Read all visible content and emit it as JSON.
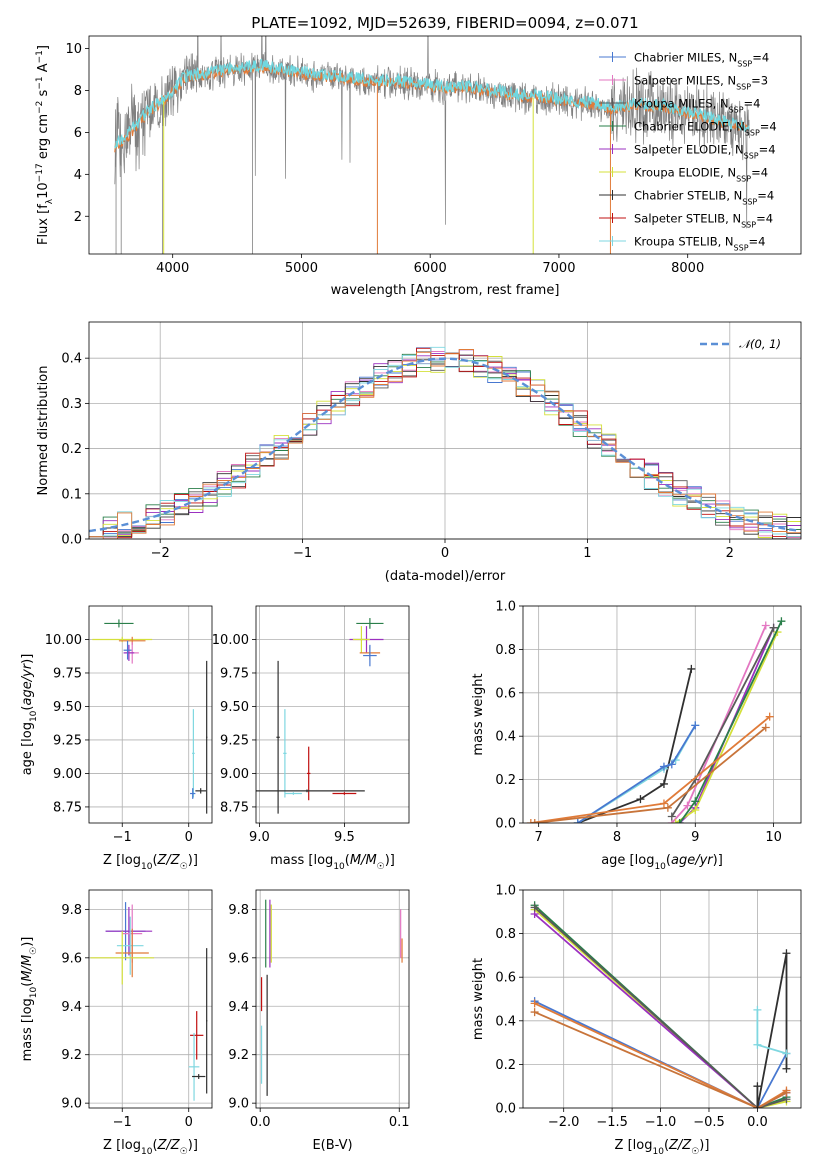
{
  "chart_data": [
    {
      "type": "line",
      "title": "PLATE=1092, MJD=52639, FIBERID=0094, z=0.071",
      "xlabel": "wavelength [Angstrom, rest frame]",
      "ylabel": "Flux [f_λ 10^-17 erg cm^-2 s^-1 A^-1]",
      "xlim": [
        3350,
        8880
      ],
      "ylim": [
        0.2,
        10.6
      ],
      "xticks": [
        "4000",
        "5000",
        "6000",
        "7000",
        "8000"
      ],
      "yticks": [
        "2",
        "4",
        "6",
        "8",
        "10"
      ],
      "grid": false,
      "legend_position": "upper right",
      "series": [
        {
          "name": "Chabrier MILES, N_SSP=4",
          "color": "#4878d0"
        },
        {
          "name": "Salpeter MILES, N_SSP=3",
          "color": "#e377c2"
        },
        {
          "name": "Kroupa MILES, N_SSP=4",
          "color": "#5a5a5a"
        },
        {
          "name": "Chabrier ELODIE, N_SSP=4",
          "color": "#2a7f4a"
        },
        {
          "name": "Salpeter ELODIE, N_SSP=4",
          "color": "#9b30c0"
        },
        {
          "name": "Kroupa ELODIE, N_SSP=4",
          "color": "#d4e03b"
        },
        {
          "name": "Chabrier STELIB, N_SSP=4",
          "color": "#303030"
        },
        {
          "name": "Salpeter STELIB, N_SSP=4",
          "color": "#c01010"
        },
        {
          "name": "Kroupa STELIB, N_SSP=4",
          "color": "#7fd7e0"
        }
      ],
      "data_spectrum_color": "#808080",
      "model_color": "#e07b39",
      "model_color2": "#70d8e0",
      "continuum_knots": {
        "x": [
          3550,
          3650,
          3800,
          3950,
          4100,
          4300,
          4500,
          4700,
          4900,
          5100,
          5300,
          5500,
          5700,
          5900,
          6100,
          6300,
          6500,
          6700,
          6900,
          7100,
          7300,
          7400
        ],
        "y": [
          5.3,
          5.8,
          6.9,
          7.6,
          8.6,
          8.8,
          9.0,
          9.1,
          8.9,
          8.7,
          8.6,
          8.4,
          8.4,
          8.3,
          8.1,
          8.1,
          7.9,
          7.7,
          7.6,
          7.4,
          7.3,
          7.1
        ]
      },
      "continuum_knots_red": {
        "x": [
          7400,
          7600,
          7800,
          8000,
          8200,
          8400
        ],
        "y": [
          7.1,
          7.3,
          7.2,
          6.9,
          6.6,
          6.2
        ]
      }
    },
    {
      "type": "line",
      "xlabel": "(data-model)/error",
      "ylabel": "Normed distribution",
      "xlim": [
        -2.5,
        2.5
      ],
      "ylim": [
        0,
        0.48
      ],
      "xticks": [
        "−2",
        "−1",
        "0",
        "1",
        "2"
      ],
      "yticks": [
        "0.0",
        "0.1",
        "0.2",
        "0.3",
        "0.4"
      ],
      "grid": true,
      "legend_position": "upper right",
      "legend": [
        "𝒩(0, 1)"
      ],
      "gaussian_color": "#5b8fd6",
      "hist_colors": [
        "#4878d0",
        "#e377c2",
        "#5a5a5a",
        "#2a7f4a",
        "#9b30c0",
        "#d4e03b",
        "#303030",
        "#c01010",
        "#7fd7e0",
        "#e07b39"
      ]
    },
    {
      "type": "scatter",
      "xlabel": "Z [log10(Z/Z☉)]",
      "ylabel": "age  [log10(age/yr)]",
      "xlim": [
        -1.5,
        0.35
      ],
      "ylim": [
        8.63,
        10.25
      ],
      "xticks": [
        "−1",
        "0"
      ],
      "yticks": [
        "8.75",
        "9.00",
        "9.25",
        "9.50",
        "9.75",
        "10.00"
      ],
      "grid": true,
      "points": [
        {
          "x": -1.05,
          "y": 10.12,
          "xerr": 0.22,
          "yerr": 0.03,
          "color": "#2a7f4a"
        },
        {
          "x": -1.0,
          "y": 10.0,
          "xerr": 0.45,
          "yerr": 0.02,
          "color": "#d4e03b"
        },
        {
          "x": -0.85,
          "y": 9.99,
          "xerr": 0.2,
          "yerr": 0.03,
          "color": "#e07b39"
        },
        {
          "x": -0.85,
          "y": 9.9,
          "xerr": 0.1,
          "yerr": 0.08,
          "color": "#e377c2"
        },
        {
          "x": -0.9,
          "y": 9.9,
          "xerr": 0.08,
          "yerr": 0.06,
          "color": "#9b30c0"
        },
        {
          "x": -0.92,
          "y": 9.92,
          "xerr": 0.06,
          "yerr": 0.07,
          "color": "#4878d0"
        },
        {
          "x": 0.07,
          "y": 9.15,
          "xerr": 0.02,
          "yerr": 0.33,
          "color": "#7fd7e0"
        },
        {
          "x": 0.06,
          "y": 8.85,
          "xerr": 0.04,
          "yerr": 0.04,
          "color": "#4878d0"
        },
        {
          "x": 0.18,
          "y": 8.87,
          "xerr": 0.08,
          "yerr": 0.02,
          "color": "#303030"
        },
        {
          "x": 0.27,
          "y": 9.27,
          "xerr": 0.01,
          "yerr": 0.57,
          "color": "#303030"
        }
      ]
    },
    {
      "type": "scatter",
      "xlabel": "mass [log10(M/M☉)]",
      "ylabel": "",
      "xlim": [
        8.98,
        9.88
      ],
      "ylim": [
        8.63,
        10.25
      ],
      "xticks": [
        "9.0",
        "9.5"
      ],
      "yticks": [
        "8.75",
        "9.00",
        "9.25",
        "9.50",
        "9.75",
        "10.00"
      ],
      "grid": true,
      "points": [
        {
          "x": 9.65,
          "y": 10.12,
          "xerr": 0.08,
          "yerr": 0.04,
          "color": "#2a7f4a"
        },
        {
          "x": 9.63,
          "y": 10.0,
          "xerr": 0.1,
          "yerr": 0.1,
          "color": "#9b30c0"
        },
        {
          "x": 9.6,
          "y": 10.0,
          "xerr": 0.05,
          "yerr": 0.1,
          "color": "#d4e03b"
        },
        {
          "x": 9.65,
          "y": 9.9,
          "xerr": 0.06,
          "yerr": 0.05,
          "color": "#e07b39"
        },
        {
          "x": 9.65,
          "y": 9.88,
          "xerr": 0.04,
          "yerr": 0.08,
          "color": "#4878d0"
        },
        {
          "x": 9.11,
          "y": 9.27,
          "xerr": 0.01,
          "yerr": 0.57,
          "color": "#303030"
        },
        {
          "x": 9.15,
          "y": 9.15,
          "xerr": 0.01,
          "yerr": 0.33,
          "color": "#7fd7e0"
        },
        {
          "x": 9.29,
          "y": 9.0,
          "xerr": 0.01,
          "yerr": 0.2,
          "color": "#c01010"
        },
        {
          "x": 9.28,
          "y": 8.87,
          "xerr": 0.34,
          "yerr": 0.01,
          "color": "#303030"
        },
        {
          "x": 9.5,
          "y": 8.85,
          "xerr": 0.07,
          "yerr": 0.01,
          "color": "#c01010"
        },
        {
          "x": 9.2,
          "y": 8.85,
          "xerr": 0.05,
          "yerr": 0.01,
          "color": "#7fd7e0"
        }
      ]
    },
    {
      "type": "line",
      "xlabel": "age  [log10(age/yr)]",
      "ylabel": "mass weight",
      "xlim": [
        6.8,
        10.35
      ],
      "ylim": [
        0,
        1.0
      ],
      "xticks": [
        "7",
        "8",
        "9",
        "10"
      ],
      "yticks": [
        "0.0",
        "0.2",
        "0.4",
        "0.6",
        "0.8",
        "1.0"
      ],
      "grid": true,
      "series": [
        {
          "color": "#303030",
          "x": [
            7.5,
            8.3,
            8.6,
            8.95
          ],
          "y": [
            0.0,
            0.11,
            0.18,
            0.71
          ]
        },
        {
          "color": "#7fd7e0",
          "x": [
            7.5,
            8.6,
            8.75,
            9.0
          ],
          "y": [
            0.0,
            0.25,
            0.29,
            0.45
          ]
        },
        {
          "color": "#4878d0",
          "x": [
            7.5,
            8.6,
            8.7,
            9.0
          ],
          "y": [
            0.0,
            0.26,
            0.27,
            0.45
          ]
        },
        {
          "color": "#e377c2",
          "x": [
            8.7,
            8.9,
            9.9
          ],
          "y": [
            0.0,
            0.08,
            0.91
          ]
        },
        {
          "color": "#9b30c0",
          "x": [
            8.8,
            9.0,
            10.0
          ],
          "y": [
            0.0,
            0.07,
            0.9
          ]
        },
        {
          "color": "#d4e03b",
          "x": [
            8.75,
            9.0,
            10.05
          ],
          "y": [
            0.0,
            0.06,
            0.88
          ]
        },
        {
          "color": "#2a7f4a",
          "x": [
            8.8,
            9.0,
            10.1
          ],
          "y": [
            0.0,
            0.1,
            0.93
          ]
        },
        {
          "color": "#5a5a5a",
          "x": [
            8.7,
            9.0,
            10.0
          ],
          "y": [
            0.03,
            0.2,
            0.9
          ]
        },
        {
          "color": "#e07b39",
          "x": [
            6.9,
            8.6,
            9.95
          ],
          "y": [
            0.0,
            0.09,
            0.49
          ]
        },
        {
          "color": "#c8743a",
          "x": [
            6.95,
            8.65,
            9.9
          ],
          "y": [
            0.0,
            0.07,
            0.44
          ]
        }
      ]
    },
    {
      "type": "scatter",
      "xlabel": "Z [log10(Z/Z☉)]",
      "ylabel": "mass [log10(M/M☉)]",
      "xlim": [
        -1.5,
        0.35
      ],
      "ylim": [
        8.98,
        9.88
      ],
      "xticks": [
        "−1",
        "0"
      ],
      "yticks": [
        "9.0",
        "9.2",
        "9.4",
        "9.6",
        "9.8"
      ],
      "grid": true,
      "points": [
        {
          "x": -0.95,
          "y": 9.71,
          "xerr": 0.3,
          "yerr": 0.12,
          "color": "#4878d0"
        },
        {
          "x": -0.9,
          "y": 9.71,
          "xerr": 0.35,
          "yerr": 0.1,
          "color": "#9b30c0"
        },
        {
          "x": -0.85,
          "y": 9.7,
          "xerr": 0.15,
          "yerr": 0.12,
          "color": "#e377c2"
        },
        {
          "x": -0.88,
          "y": 9.65,
          "xerr": 0.2,
          "yerr": 0.12,
          "color": "#7fd7e0"
        },
        {
          "x": -0.85,
          "y": 9.62,
          "xerr": 0.25,
          "yerr": 0.1,
          "color": "#e07b39"
        },
        {
          "x": -1.0,
          "y": 9.6,
          "xerr": 0.48,
          "yerr": 0.11,
          "color": "#d4e03b"
        },
        {
          "x": 0.12,
          "y": 9.28,
          "xerr": 0.1,
          "yerr": 0.1,
          "color": "#c01010"
        },
        {
          "x": 0.08,
          "y": 9.15,
          "xerr": 0.08,
          "yerr": 0.14,
          "color": "#7fd7e0"
        },
        {
          "x": 0.15,
          "y": 9.11,
          "xerr": 0.1,
          "yerr": 0.01,
          "color": "#303030"
        },
        {
          "x": 0.27,
          "y": 9.34,
          "xerr": 0.01,
          "yerr": 0.3,
          "color": "#303030"
        }
      ]
    },
    {
      "type": "scatter",
      "xlabel": "E(B-V)",
      "ylabel": "",
      "xlim": [
        -0.003,
        0.107
      ],
      "ylim": [
        8.98,
        9.88
      ],
      "xticks": [
        "0.0",
        "0.1"
      ],
      "yticks": [
        "9.0",
        "9.2",
        "9.4",
        "9.6",
        "9.8"
      ],
      "grid": true,
      "points": [
        {
          "x": 0.001,
          "y": 9.45,
          "yerr": 0.07,
          "color": "#c01010"
        },
        {
          "x": 0.001,
          "y": 9.2,
          "yerr": 0.12,
          "color": "#7fd7e0"
        },
        {
          "x": 0.005,
          "y": 9.28,
          "yerr": 0.25,
          "color": "#303030"
        },
        {
          "x": 0.007,
          "y": 9.7,
          "yerr": 0.14,
          "color": "#9b30c0"
        },
        {
          "x": 0.008,
          "y": 9.7,
          "yerr": 0.12,
          "color": "#d4e03b"
        },
        {
          "x": 0.004,
          "y": 9.7,
          "yerr": 0.14,
          "color": "#2a7f4a"
        },
        {
          "x": 0.101,
          "y": 9.7,
          "yerr": 0.1,
          "color": "#e377c2"
        },
        {
          "x": 0.102,
          "y": 9.63,
          "yerr": 0.05,
          "color": "#e07b39"
        }
      ]
    },
    {
      "type": "line",
      "xlabel": "Z [log10(Z/Z☉)]",
      "ylabel": "mass weight",
      "xlim": [
        -2.42,
        0.45
      ],
      "ylim": [
        0,
        1.0
      ],
      "xticks": [
        "−2.0",
        "−1.5",
        "−1.0",
        "−0.5",
        "0.0"
      ],
      "yticks": [
        "0.0",
        "0.2",
        "0.4",
        "0.6",
        "0.8",
        "1.0"
      ],
      "grid": true,
      "series": [
        {
          "color": "#2a7f4a",
          "x": [
            -2.3,
            0.0,
            0.3
          ],
          "y": [
            0.93,
            0.0,
            0.05
          ]
        },
        {
          "color": "#d4e03b",
          "x": [
            -2.3,
            0.0,
            0.3
          ],
          "y": [
            0.91,
            0.0,
            0.03
          ]
        },
        {
          "color": "#9b30c0",
          "x": [
            -2.3,
            0.0,
            0.3
          ],
          "y": [
            0.89,
            0.0,
            0.07
          ]
        },
        {
          "color": "#5a5a5a",
          "x": [
            -2.3,
            0.0,
            0.3
          ],
          "y": [
            0.92,
            0.0,
            0.04
          ]
        },
        {
          "color": "#4878d0",
          "x": [
            -2.3,
            0.0,
            0.3
          ],
          "y": [
            0.49,
            0.0,
            0.25
          ]
        },
        {
          "color": "#e07b39",
          "x": [
            -2.3,
            0.0,
            0.3
          ],
          "y": [
            0.48,
            0.0,
            0.08
          ]
        },
        {
          "color": "#c8743a",
          "x": [
            -2.3,
            0.0,
            0.3
          ],
          "y": [
            0.44,
            0.0,
            0.07
          ]
        },
        {
          "color": "#303030",
          "x": [
            0.0,
            0.0,
            0.3,
            0.3
          ],
          "y": [
            0.1,
            0.0,
            0.71,
            0.18
          ]
        },
        {
          "color": "#7fd7e0",
          "x": [
            0.0,
            0.0,
            0.3
          ],
          "y": [
            0.45,
            0.29,
            0.25
          ]
        }
      ]
    }
  ]
}
